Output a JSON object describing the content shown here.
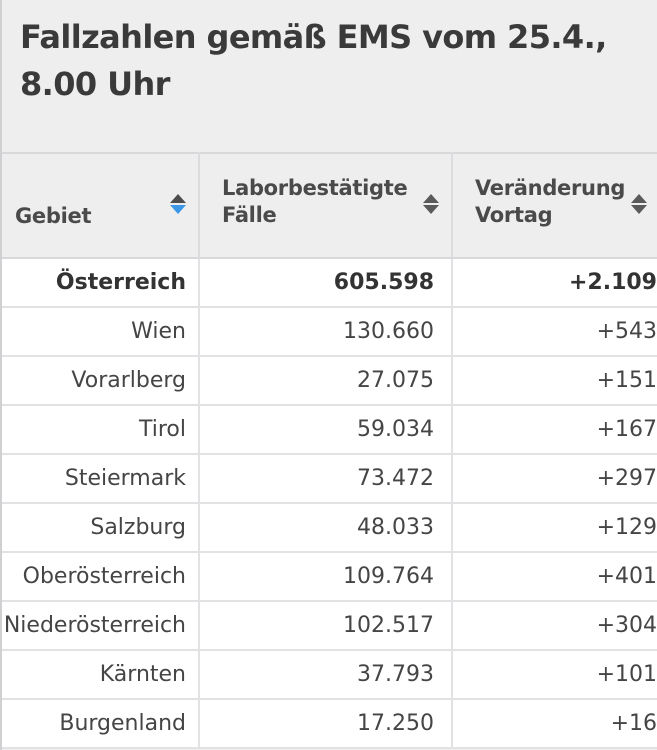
{
  "title": "Fallzahlen gemäß EMS vom 25.4., 8.00 Uhr",
  "columns": [
    {
      "label": "Gebiet",
      "sort": "descending-active"
    },
    {
      "label_line1": "Laborbestätigte",
      "label_line2": "Fälle",
      "sort": "none"
    },
    {
      "label_line1": "Veränderung",
      "label_line2": "Vortag",
      "sort": "none"
    }
  ],
  "rows": [
    {
      "region": "Österreich",
      "cases": "605.598",
      "change": "+2.109",
      "is_total": true
    },
    {
      "region": "Wien",
      "cases": "130.660",
      "change": "+543"
    },
    {
      "region": "Vorarlberg",
      "cases": "27.075",
      "change": "+151"
    },
    {
      "region": "Tirol",
      "cases": "59.034",
      "change": "+167"
    },
    {
      "region": "Steiermark",
      "cases": "73.472",
      "change": "+297"
    },
    {
      "region": "Salzburg",
      "cases": "48.033",
      "change": "+129"
    },
    {
      "region": "Oberösterreich",
      "cases": "109.764",
      "change": "+401"
    },
    {
      "region": "Niederösterreich",
      "cases": "102.517",
      "change": "+304"
    },
    {
      "region": "Kärnten",
      "cases": "37.793",
      "change": "+101"
    },
    {
      "region": "Burgenland",
      "cases": "17.250",
      "change": "+16"
    }
  ],
  "colors": {
    "background": "#eeeeef",
    "sort_active": "#3a97e8",
    "text": "#454545"
  }
}
